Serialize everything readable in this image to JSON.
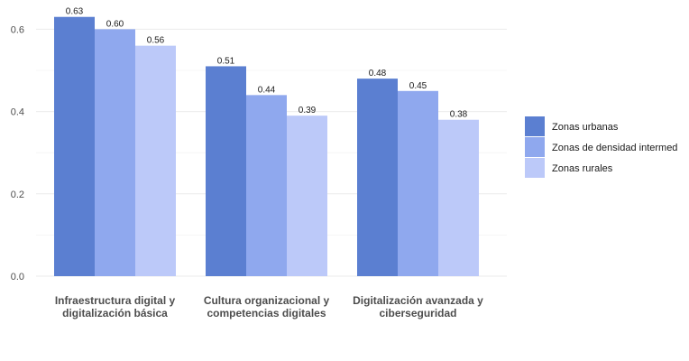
{
  "chart_data": {
    "type": "bar",
    "title": "",
    "xlabel": "",
    "ylabel": "",
    "ylim": [
      0,
      0.65
    ],
    "yticks": [
      0.0,
      0.2,
      0.4,
      0.6
    ],
    "ytick_labels": [
      "0.0",
      "0.2",
      "0.4",
      "0.6"
    ],
    "grid": true,
    "legend_position": "right",
    "categories": [
      [
        "Infraestructura digital y",
        "digitalización básica"
      ],
      [
        "Cultura organizacional y",
        "competencias digitales"
      ],
      [
        "Digitalización avanzada y",
        "ciberseguridad"
      ]
    ],
    "series": [
      {
        "name": "Zonas urbanas",
        "color": "#5b7fd1",
        "values": [
          0.63,
          0.51,
          0.48
        ],
        "labels": [
          "0.63",
          "0.51",
          "0.48"
        ]
      },
      {
        "name": "Zonas de densidad intermed",
        "color": "#8fa8ee",
        "values": [
          0.6,
          0.44,
          0.45
        ],
        "labels": [
          "0.60",
          "0.44",
          "0.45"
        ]
      },
      {
        "name": "Zonas rurales",
        "color": "#bcc9f9",
        "values": [
          0.56,
          0.39,
          0.38
        ],
        "labels": [
          "0.56",
          "0.39",
          "0.38"
        ]
      }
    ]
  }
}
